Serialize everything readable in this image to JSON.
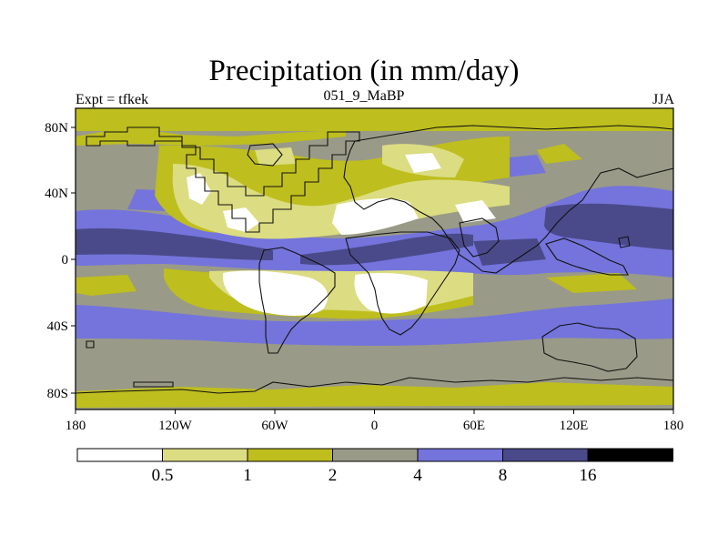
{
  "title": "Precipitation (in mm/day)",
  "subtitle_left": "Expt = tfkek",
  "subtitle_center": "051_9_MaBP",
  "subtitle_right": "JJA",
  "map": {
    "lon_ticks": [
      "180",
      "120W",
      "60W",
      "0",
      "60E",
      "120E",
      "180"
    ],
    "lat_ticks": [
      "80N",
      "40N",
      "0",
      "40S",
      "80S"
    ]
  },
  "colorbar": {
    "labels": [
      "0.5",
      "1",
      "2",
      "4",
      "8",
      "16"
    ],
    "colors": [
      "#ffffff",
      "#dcdc82",
      "#bebe1e",
      "#9a9a88",
      "#7474dc",
      "#4a4a8a",
      "#000000"
    ]
  },
  "palette": {
    "white": "#ffffff",
    "pale_yellow": "#dcdc82",
    "olive": "#bebe1e",
    "gray": "#9a9a88",
    "blue": "#7474dc",
    "navy": "#4a4a8a"
  }
}
